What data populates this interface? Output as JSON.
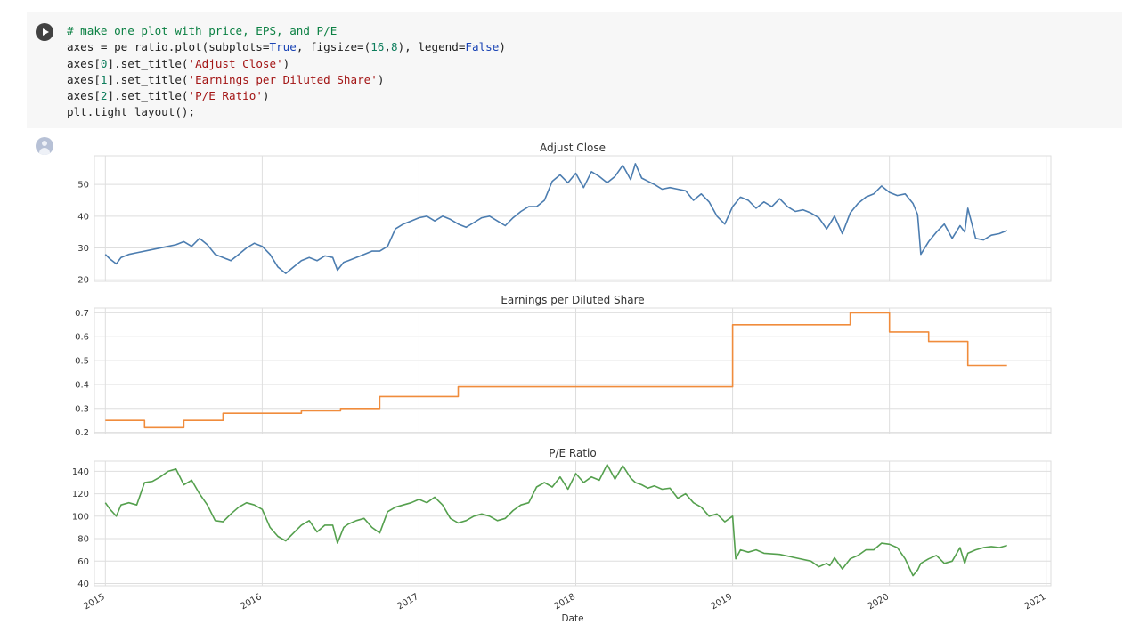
{
  "code_cell": {
    "lines": [
      [
        {
          "t": "# make one plot with price, EPS, and P/E",
          "c": "cmt"
        }
      ],
      [
        {
          "t": "axes = pe_ratio.plot(subplots=",
          "c": ""
        },
        {
          "t": "True",
          "c": "kw"
        },
        {
          "t": ", figsize=(",
          "c": ""
        },
        {
          "t": "16",
          "c": "num"
        },
        {
          "t": ",",
          "c": ""
        },
        {
          "t": "8",
          "c": "num"
        },
        {
          "t": "), legend=",
          "c": ""
        },
        {
          "t": "False",
          "c": "kw"
        },
        {
          "t": ")",
          "c": ""
        }
      ],
      [
        {
          "t": "axes[",
          "c": ""
        },
        {
          "t": "0",
          "c": "num"
        },
        {
          "t": "].set_title(",
          "c": ""
        },
        {
          "t": "'Adjust Close'",
          "c": "str"
        },
        {
          "t": ")",
          "c": ""
        }
      ],
      [
        {
          "t": "axes[",
          "c": ""
        },
        {
          "t": "1",
          "c": "num"
        },
        {
          "t": "].set_title(",
          "c": ""
        },
        {
          "t": "'Earnings per Diluted Share'",
          "c": "str"
        },
        {
          "t": ")",
          "c": ""
        }
      ],
      [
        {
          "t": "axes[",
          "c": ""
        },
        {
          "t": "2",
          "c": "num"
        },
        {
          "t": "].set_title(",
          "c": ""
        },
        {
          "t": "'P/E Ratio'",
          "c": "str"
        },
        {
          "t": ")",
          "c": ""
        }
      ],
      [
        {
          "t": "plt.tight_layout();",
          "c": ""
        }
      ]
    ]
  },
  "colors": {
    "adjust_close": "#4c7db0",
    "eps": "#f08c3c",
    "pe_ratio": "#55a04e",
    "grid": "#dedede"
  },
  "chart_data": {
    "type": "line",
    "xlabel": "Date",
    "x_ticks": [
      "2015",
      "2016",
      "2017",
      "2018",
      "2019",
      "2020",
      "2021"
    ],
    "xlim": [
      2014.93,
      2021.03
    ],
    "panels": [
      {
        "title": "Adjust Close",
        "ylim": [
          19.5,
          59
        ],
        "y_ticks": [
          20,
          30,
          40,
          50
        ],
        "series": {
          "x": [
            2015.0,
            2015.03,
            2015.07,
            2015.1,
            2015.15,
            2015.2,
            2015.3,
            2015.4,
            2015.45,
            2015.5,
            2015.55,
            2015.6,
            2015.65,
            2015.7,
            2015.75,
            2015.8,
            2015.85,
            2015.9,
            2015.95,
            2016.0,
            2016.05,
            2016.1,
            2016.15,
            2016.2,
            2016.25,
            2016.3,
            2016.35,
            2016.4,
            2016.45,
            2016.48,
            2016.52,
            2016.55,
            2016.6,
            2016.65,
            2016.7,
            2016.75,
            2016.8,
            2016.85,
            2016.9,
            2016.95,
            2017.0,
            2017.05,
            2017.1,
            2017.15,
            2017.2,
            2017.25,
            2017.3,
            2017.35,
            2017.4,
            2017.45,
            2017.5,
            2017.55,
            2017.6,
            2017.65,
            2017.7,
            2017.75,
            2017.8,
            2017.85,
            2017.9,
            2017.95,
            2018.0,
            2018.05,
            2018.1,
            2018.15,
            2018.2,
            2018.25,
            2018.3,
            2018.35,
            2018.38,
            2018.42,
            2018.46,
            2018.5,
            2018.55,
            2018.6,
            2018.65,
            2018.7,
            2018.75,
            2018.8,
            2018.85,
            2018.9,
            2018.95,
            2019.0,
            2019.05,
            2019.1,
            2019.15,
            2019.2,
            2019.25,
            2019.3,
            2019.35,
            2019.4,
            2019.45,
            2019.5,
            2019.55,
            2019.6,
            2019.62,
            2019.65,
            2019.7,
            2019.75,
            2019.8,
            2019.85,
            2019.9,
            2019.95,
            2020.0,
            2020.05,
            2020.1,
            2020.15,
            2020.18,
            2020.2,
            2020.25,
            2020.3,
            2020.35,
            2020.4,
            2020.45,
            2020.48,
            2020.5,
            2020.55,
            2020.6,
            2020.65,
            2020.7,
            2020.75
          ],
          "y": [
            28,
            26.5,
            25,
            27,
            28,
            28.5,
            29.5,
            30.5,
            31,
            32,
            30.5,
            33,
            31,
            28,
            27,
            26,
            28,
            30,
            31.5,
            30.5,
            28,
            24,
            22,
            24,
            26,
            27,
            26,
            27.5,
            27,
            23,
            25.5,
            26,
            27,
            28,
            29,
            29,
            30.5,
            36,
            37.5,
            38.5,
            39.5,
            40,
            38.5,
            40,
            39,
            37.5,
            36.5,
            38,
            39.5,
            40,
            38.5,
            37,
            39.5,
            41.5,
            43,
            43,
            45,
            51,
            53,
            50.5,
            53.5,
            49,
            54,
            52.5,
            50.5,
            52.5,
            56,
            51.5,
            56.5,
            52,
            51,
            50,
            48.5,
            49,
            48.5,
            48,
            45,
            47,
            44.5,
            40,
            37.5,
            43,
            46,
            45,
            42.5,
            44.5,
            43,
            45.5,
            43,
            41.5,
            42,
            41,
            39.5,
            36,
            37.5,
            40,
            34.5,
            41,
            44,
            46,
            47,
            49.5,
            47.5,
            46.5,
            47,
            44,
            40.5,
            28,
            32,
            35,
            37.5,
            33,
            37,
            35,
            42.5,
            33,
            32.5,
            34,
            34.5,
            35.5
          ]
        }
      },
      {
        "title": "Earnings per Diluted Share",
        "ylim": [
          0.195,
          0.72
        ],
        "y_ticks": [
          0.2,
          0.3,
          0.4,
          0.5,
          0.6,
          0.7
        ],
        "series": {
          "x": [
            2015.0,
            2015.25,
            2015.5,
            2015.75,
            2016.25,
            2016.5,
            2016.75,
            2017.25,
            2019.0,
            2019.75,
            2020.0,
            2020.25,
            2020.5,
            2020.75
          ],
          "y": [
            0.25,
            0.22,
            0.25,
            0.28,
            0.29,
            0.3,
            0.35,
            0.39,
            0.65,
            0.7,
            0.62,
            0.58,
            0.48,
            0.48
          ],
          "step": true
        }
      },
      {
        "title": "P/E Ratio",
        "ylim": [
          38,
          149
        ],
        "y_ticks": [
          40,
          60,
          80,
          100,
          120,
          140
        ],
        "series": {
          "x": [
            2015.0,
            2015.03,
            2015.07,
            2015.1,
            2015.15,
            2015.2,
            2015.25,
            2015.3,
            2015.35,
            2015.4,
            2015.45,
            2015.5,
            2015.55,
            2015.6,
            2015.65,
            2015.7,
            2015.75,
            2015.8,
            2015.85,
            2015.9,
            2015.95,
            2016.0,
            2016.05,
            2016.1,
            2016.15,
            2016.2,
            2016.25,
            2016.3,
            2016.35,
            2016.4,
            2016.45,
            2016.48,
            2016.52,
            2016.55,
            2016.6,
            2016.65,
            2016.7,
            2016.75,
            2016.8,
            2016.85,
            2016.9,
            2016.95,
            2017.0,
            2017.05,
            2017.1,
            2017.15,
            2017.2,
            2017.25,
            2017.3,
            2017.35,
            2017.4,
            2017.45,
            2017.5,
            2017.55,
            2017.6,
            2017.65,
            2017.7,
            2017.75,
            2017.8,
            2017.85,
            2017.9,
            2017.95,
            2018.0,
            2018.05,
            2018.1,
            2018.15,
            2018.2,
            2018.25,
            2018.3,
            2018.35,
            2018.38,
            2018.42,
            2018.46,
            2018.5,
            2018.55,
            2018.6,
            2018.65,
            2018.7,
            2018.75,
            2018.8,
            2018.85,
            2018.9,
            2018.95,
            2019.0,
            2019.02,
            2019.05,
            2019.1,
            2019.15,
            2019.2,
            2019.3,
            2019.4,
            2019.5,
            2019.55,
            2019.6,
            2019.62,
            2019.65,
            2019.7,
            2019.75,
            2019.8,
            2019.85,
            2019.9,
            2019.95,
            2020.0,
            2020.05,
            2020.1,
            2020.15,
            2020.18,
            2020.2,
            2020.25,
            2020.3,
            2020.35,
            2020.4,
            2020.45,
            2020.48,
            2020.5,
            2020.55,
            2020.6,
            2020.65,
            2020.7,
            2020.75
          ],
          "y": [
            112,
            106,
            100,
            110,
            112,
            110,
            130,
            131,
            135,
            140,
            142,
            128,
            132,
            120,
            110,
            96,
            95,
            102,
            108,
            112,
            110,
            106,
            90,
            82,
            78,
            85,
            92,
            96,
            86,
            92,
            92,
            76,
            90,
            93,
            96,
            98,
            90,
            85,
            104,
            108,
            110,
            112,
            115,
            112,
            117,
            110,
            98,
            94,
            96,
            100,
            102,
            100,
            96,
            98,
            105,
            110,
            112,
            126,
            130,
            126,
            135,
            124,
            138,
            130,
            135,
            132,
            146,
            133,
            145,
            134,
            130,
            128,
            125,
            127,
            124,
            125,
            116,
            120,
            112,
            108,
            100,
            102,
            95,
            100,
            62,
            70,
            68,
            70,
            67,
            66,
            63,
            60,
            55,
            58,
            56,
            63,
            53,
            62,
            65,
            70,
            70,
            76,
            75,
            72,
            62,
            47,
            52,
            58,
            62,
            65,
            58,
            60,
            72,
            58,
            67,
            70,
            72,
            73,
            72,
            74
          ]
        }
      }
    ]
  }
}
